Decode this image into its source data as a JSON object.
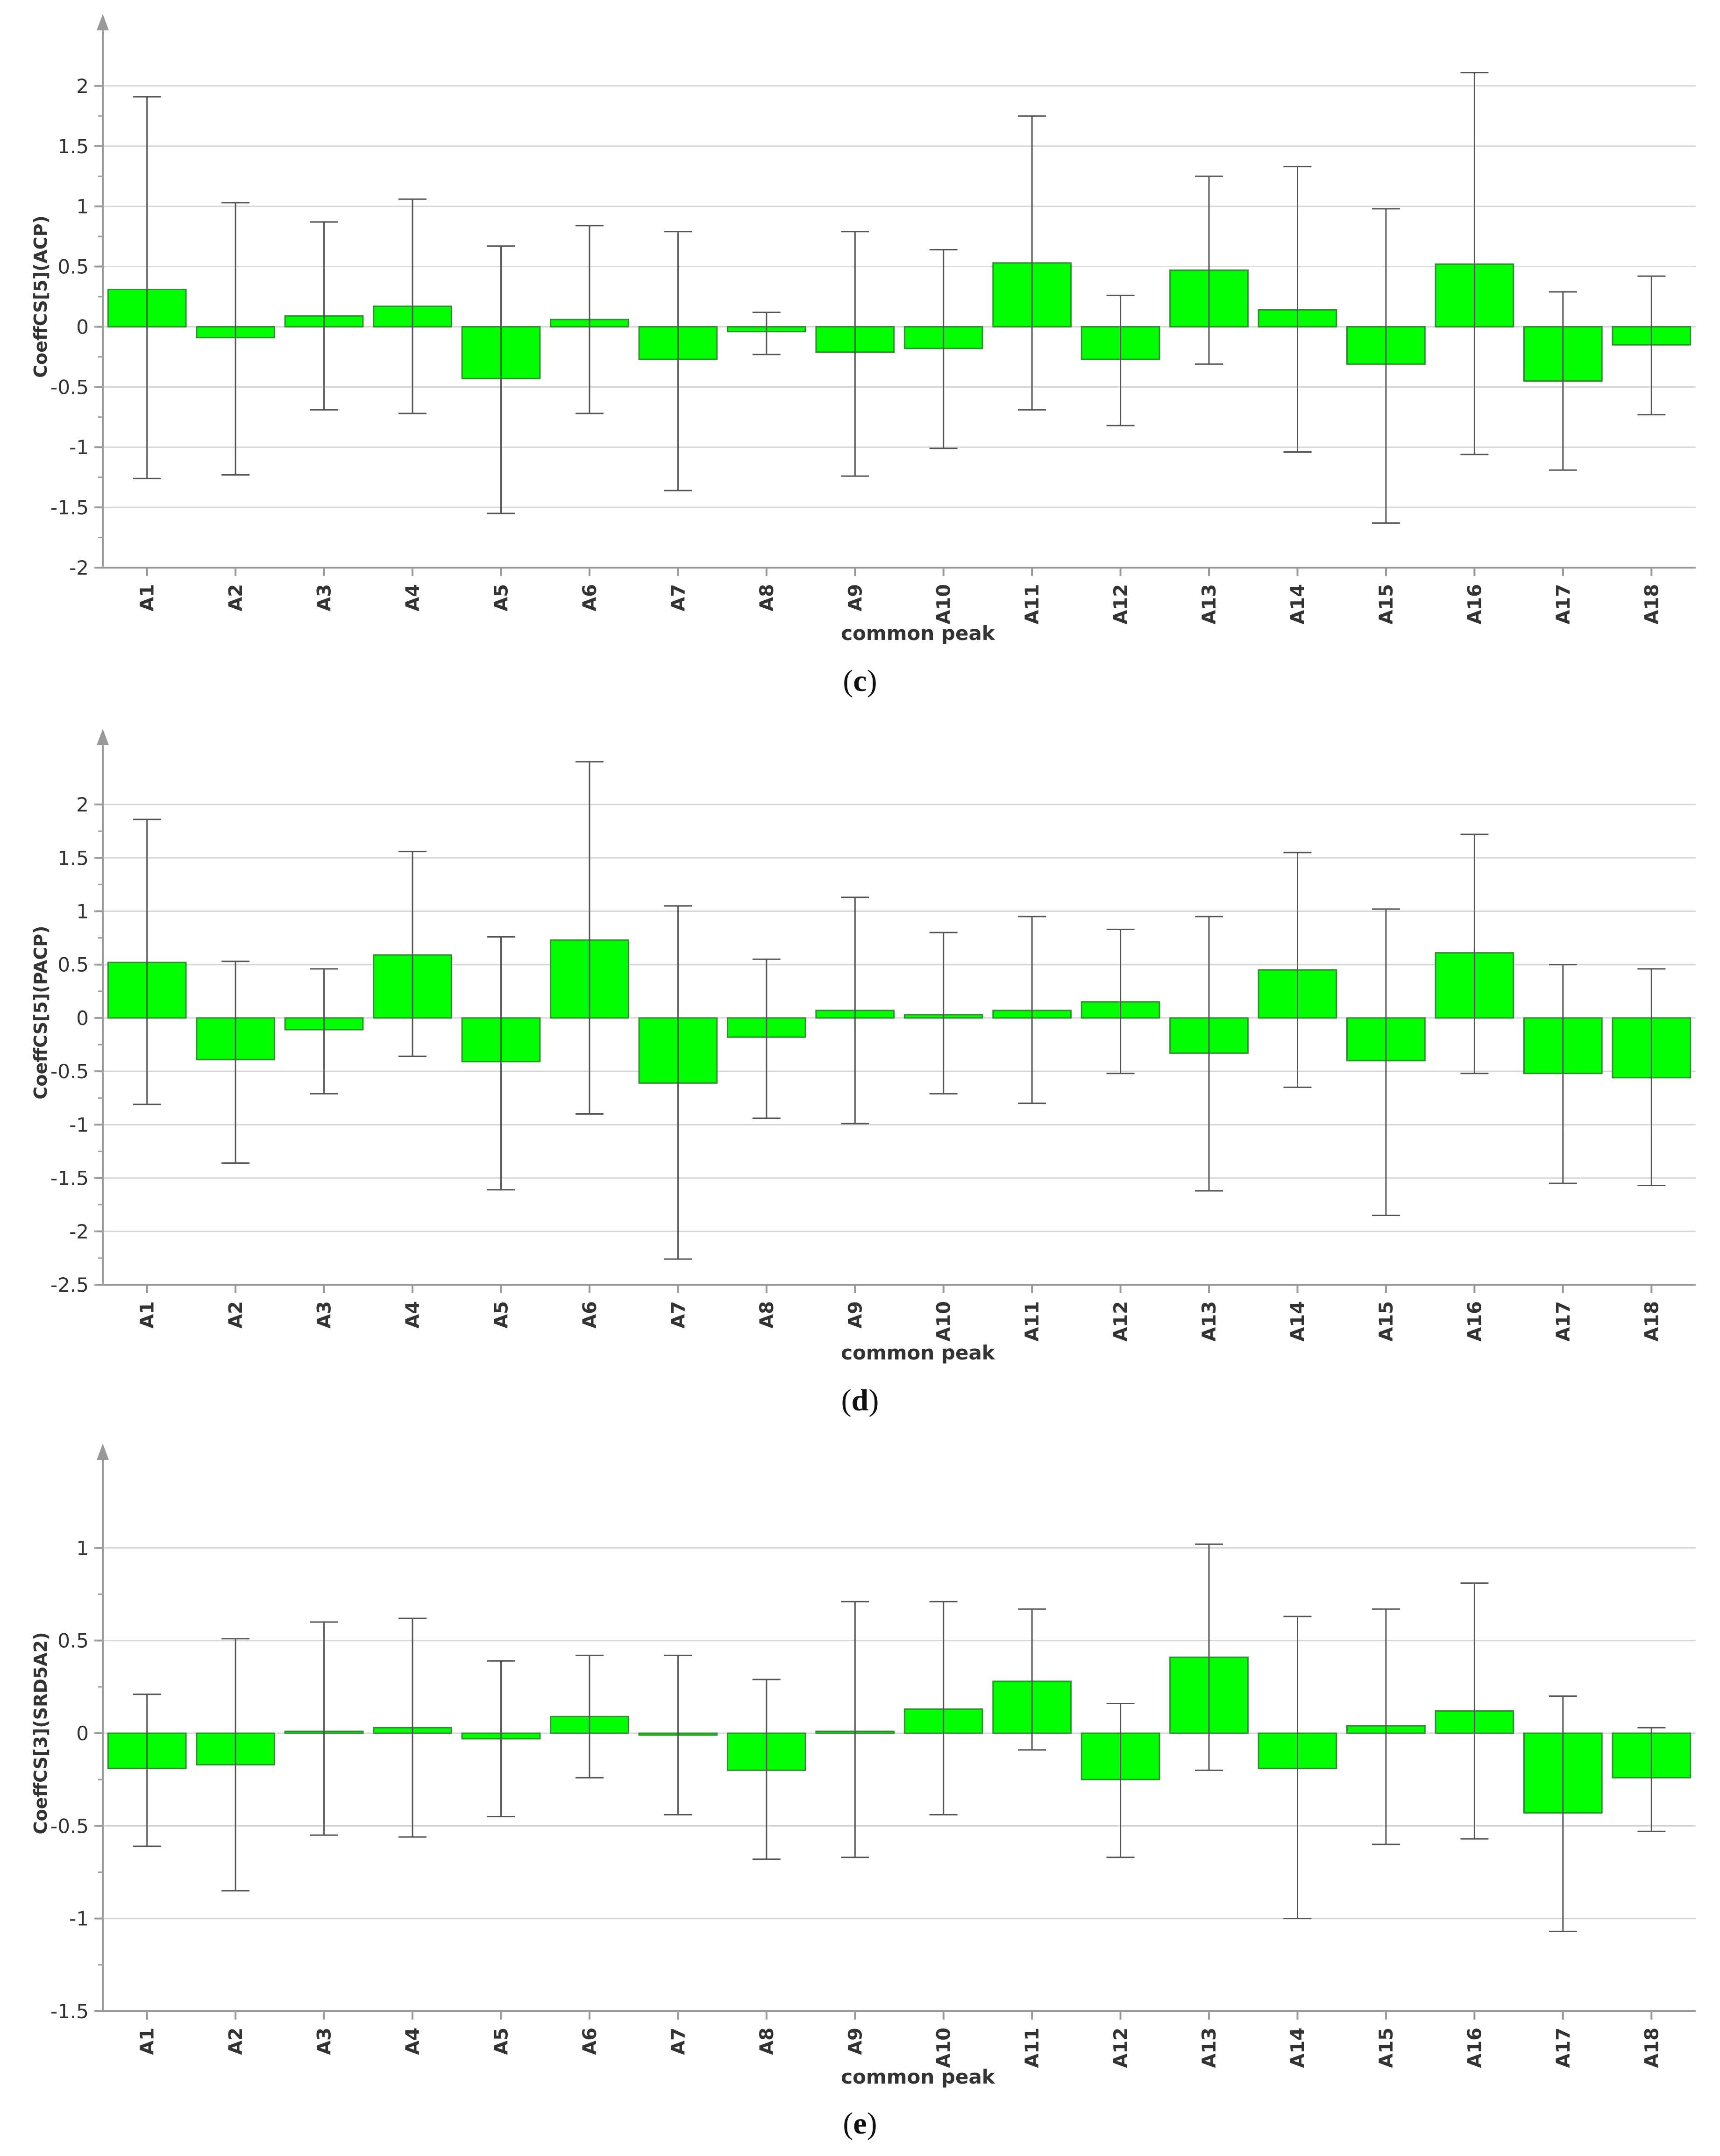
{
  "chart_data": [
    {
      "type": "bar",
      "ylabel": "CoeffCS[5](ACP)",
      "xlabel": "common peak",
      "caption": "c",
      "categories": [
        "A1",
        "A2",
        "A3",
        "A4",
        "A5",
        "A6",
        "A7",
        "A8",
        "A9",
        "A10",
        "A11",
        "A12",
        "A13",
        "A14",
        "A15",
        "A16",
        "A17",
        "A18"
      ],
      "values": [
        0.31,
        -0.09,
        0.09,
        0.17,
        -0.43,
        0.06,
        -0.27,
        -0.04,
        -0.21,
        -0.18,
        0.53,
        -0.27,
        0.47,
        0.14,
        -0.31,
        0.52,
        -0.45,
        -0.15
      ],
      "error_low": [
        -1.26,
        -1.23,
        -0.69,
        -0.72,
        -1.55,
        -0.72,
        -1.36,
        -0.23,
        -1.24,
        -1.01,
        -0.69,
        -0.82,
        -0.31,
        -1.04,
        -1.63,
        -1.06,
        -1.19,
        -0.73
      ],
      "error_high": [
        1.91,
        1.03,
        0.87,
        1.06,
        0.67,
        0.84,
        0.79,
        0.12,
        0.79,
        0.64,
        1.75,
        0.26,
        1.25,
        1.33,
        0.98,
        2.11,
        0.29,
        0.42
      ],
      "ylim": [
        -2,
        2.5
      ],
      "yticks": [
        "2",
        "1.5",
        "1",
        "0.5",
        "0",
        "-0.5",
        "-1",
        "-1.5",
        "-2"
      ],
      "ytick_values": [
        2,
        1.5,
        1,
        0.5,
        0,
        -0.5,
        -1,
        -1.5,
        -2
      ],
      "grid": true,
      "bar_color": "#00ff00"
    },
    {
      "type": "bar",
      "ylabel": "CoeffCS[5](PACP)",
      "xlabel": "common peak",
      "caption": "d",
      "categories": [
        "A1",
        "A2",
        "A3",
        "A4",
        "A5",
        "A6",
        "A7",
        "A8",
        "A9",
        "A10",
        "A11",
        "A12",
        "A13",
        "A14",
        "A15",
        "A16",
        "A17",
        "A18"
      ],
      "values": [
        0.52,
        -0.39,
        -0.11,
        0.59,
        -0.41,
        0.73,
        -0.61,
        -0.18,
        0.07,
        0.03,
        0.07,
        0.15,
        -0.33,
        0.45,
        -0.4,
        0.61,
        -0.52,
        -0.56
      ],
      "error_low": [
        -0.81,
        -1.36,
        -0.71,
        -0.36,
        -1.61,
        -0.9,
        -2.26,
        -0.94,
        -0.99,
        -0.71,
        -0.8,
        -0.52,
        -1.62,
        -0.65,
        -1.85,
        -0.52,
        -1.55,
        -1.57
      ],
      "error_high": [
        1.86,
        0.53,
        0.46,
        1.56,
        0.76,
        2.4,
        1.05,
        0.55,
        1.13,
        0.8,
        0.95,
        0.83,
        0.95,
        1.55,
        1.02,
        1.72,
        0.5,
        0.46
      ],
      "ylim": [
        -2.5,
        2.6
      ],
      "yticks": [
        "2",
        "1.5",
        "1",
        "0.5",
        "0",
        "-0.5",
        "-1",
        "-1.5",
        "-2",
        "-2.5"
      ],
      "ytick_values": [
        2,
        1.5,
        1,
        0.5,
        0,
        -0.5,
        -1,
        -1.5,
        -2,
        -2.5
      ],
      "grid": true,
      "bar_color": "#00ff00"
    },
    {
      "type": "bar",
      "ylabel": "CoeffCS[3](SRD5A2)",
      "xlabel": "common peak",
      "caption": "e",
      "categories": [
        "A1",
        "A2",
        "A3",
        "A4",
        "A5",
        "A6",
        "A7",
        "A8",
        "A9",
        "A10",
        "A11",
        "A12",
        "A13",
        "A14",
        "A15",
        "A16",
        "A17",
        "A18"
      ],
      "values": [
        -0.19,
        -0.17,
        0.01,
        0.03,
        -0.03,
        0.09,
        -0.01,
        -0.2,
        0.01,
        0.13,
        0.28,
        -0.25,
        0.41,
        -0.19,
        0.04,
        0.12,
        -0.43,
        -0.24
      ],
      "error_low": [
        -0.61,
        -0.85,
        -0.55,
        -0.56,
        -0.45,
        -0.24,
        -0.44,
        -0.68,
        -0.67,
        -0.44,
        -0.09,
        -0.67,
        -0.2,
        -1.0,
        -0.6,
        -0.57,
        -1.07,
        -0.53
      ],
      "error_high": [
        0.21,
        0.51,
        0.6,
        0.62,
        0.39,
        0.42,
        0.42,
        0.29,
        0.71,
        0.71,
        0.67,
        0.16,
        1.02,
        0.63,
        0.67,
        0.81,
        0.2,
        0.03
      ],
      "ylim": [
        -1.5,
        1.5
      ],
      "yticks": [
        "1",
        "0.5",
        "0",
        "-0.5",
        "-1",
        "-1.5"
      ],
      "ytick_values": [
        1,
        0.5,
        0,
        -0.5,
        -1,
        -1.5
      ],
      "grid": true,
      "bar_color": "#00ff00"
    }
  ]
}
